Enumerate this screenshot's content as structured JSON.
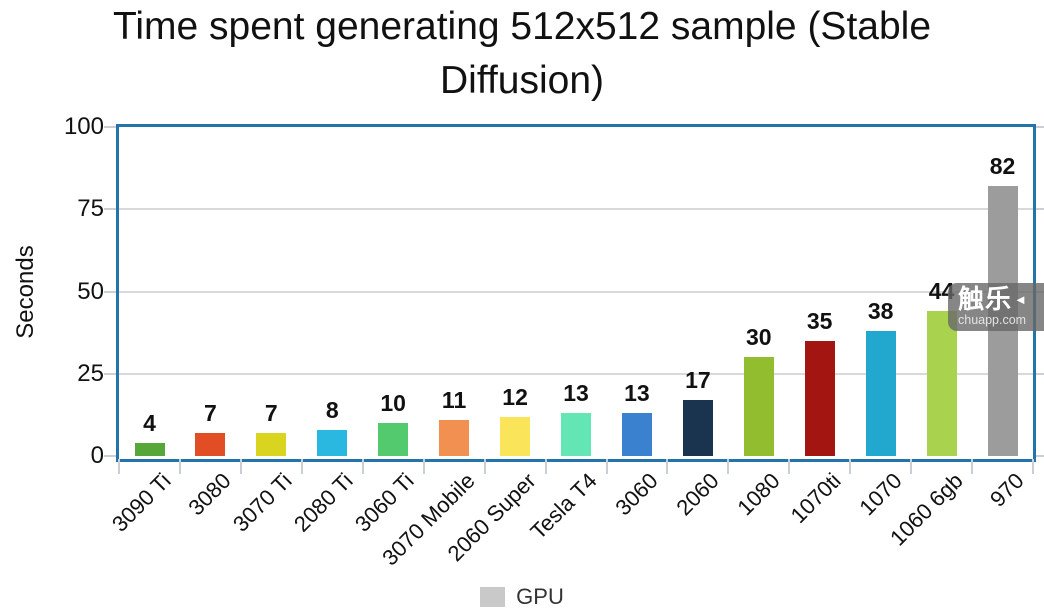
{
  "chart_data": {
    "type": "bar",
    "title": "Time spent generating 512x512 sample (Stable Diffusion)",
    "ylabel": "Seconds",
    "xlabel": "",
    "ylim": [
      0,
      100
    ],
    "yticks": [
      0,
      25,
      50,
      75,
      100
    ],
    "grid": true,
    "value_labels": true,
    "categories": [
      "3090 Ti",
      "3080",
      "3070 Ti",
      "2080 Ti",
      "3060 Ti",
      "3070 Mobile",
      "2060 Super",
      "Tesla T4",
      "3060",
      "2060",
      "1080",
      "1070ti",
      "1070",
      "1060 6gb",
      "970"
    ],
    "values": [
      4,
      7,
      7,
      8,
      10,
      11,
      12,
      13,
      13,
      17,
      30,
      35,
      38,
      44,
      82
    ],
    "bar_colors": [
      "#57a639",
      "#e14e25",
      "#d9d41f",
      "#2ab7e0",
      "#54ca6e",
      "#f29051",
      "#fae45a",
      "#64e6b4",
      "#3a82cf",
      "#1a3450",
      "#92bd2e",
      "#a21511",
      "#22a7cf",
      "#a9d34e",
      "#9c9c9c"
    ],
    "legend": {
      "position": "bottom",
      "entries": [
        "GPU"
      ],
      "swatch_color": "#c9c9c9"
    }
  },
  "watermark": {
    "logo": "触乐",
    "play_icon": "◄",
    "url": "chuapp.com"
  },
  "colors": {
    "plot_border": "#2274aa",
    "gridline": "#d9d9d9",
    "axis_tick": "#c9cfd4",
    "text": "#111111"
  }
}
